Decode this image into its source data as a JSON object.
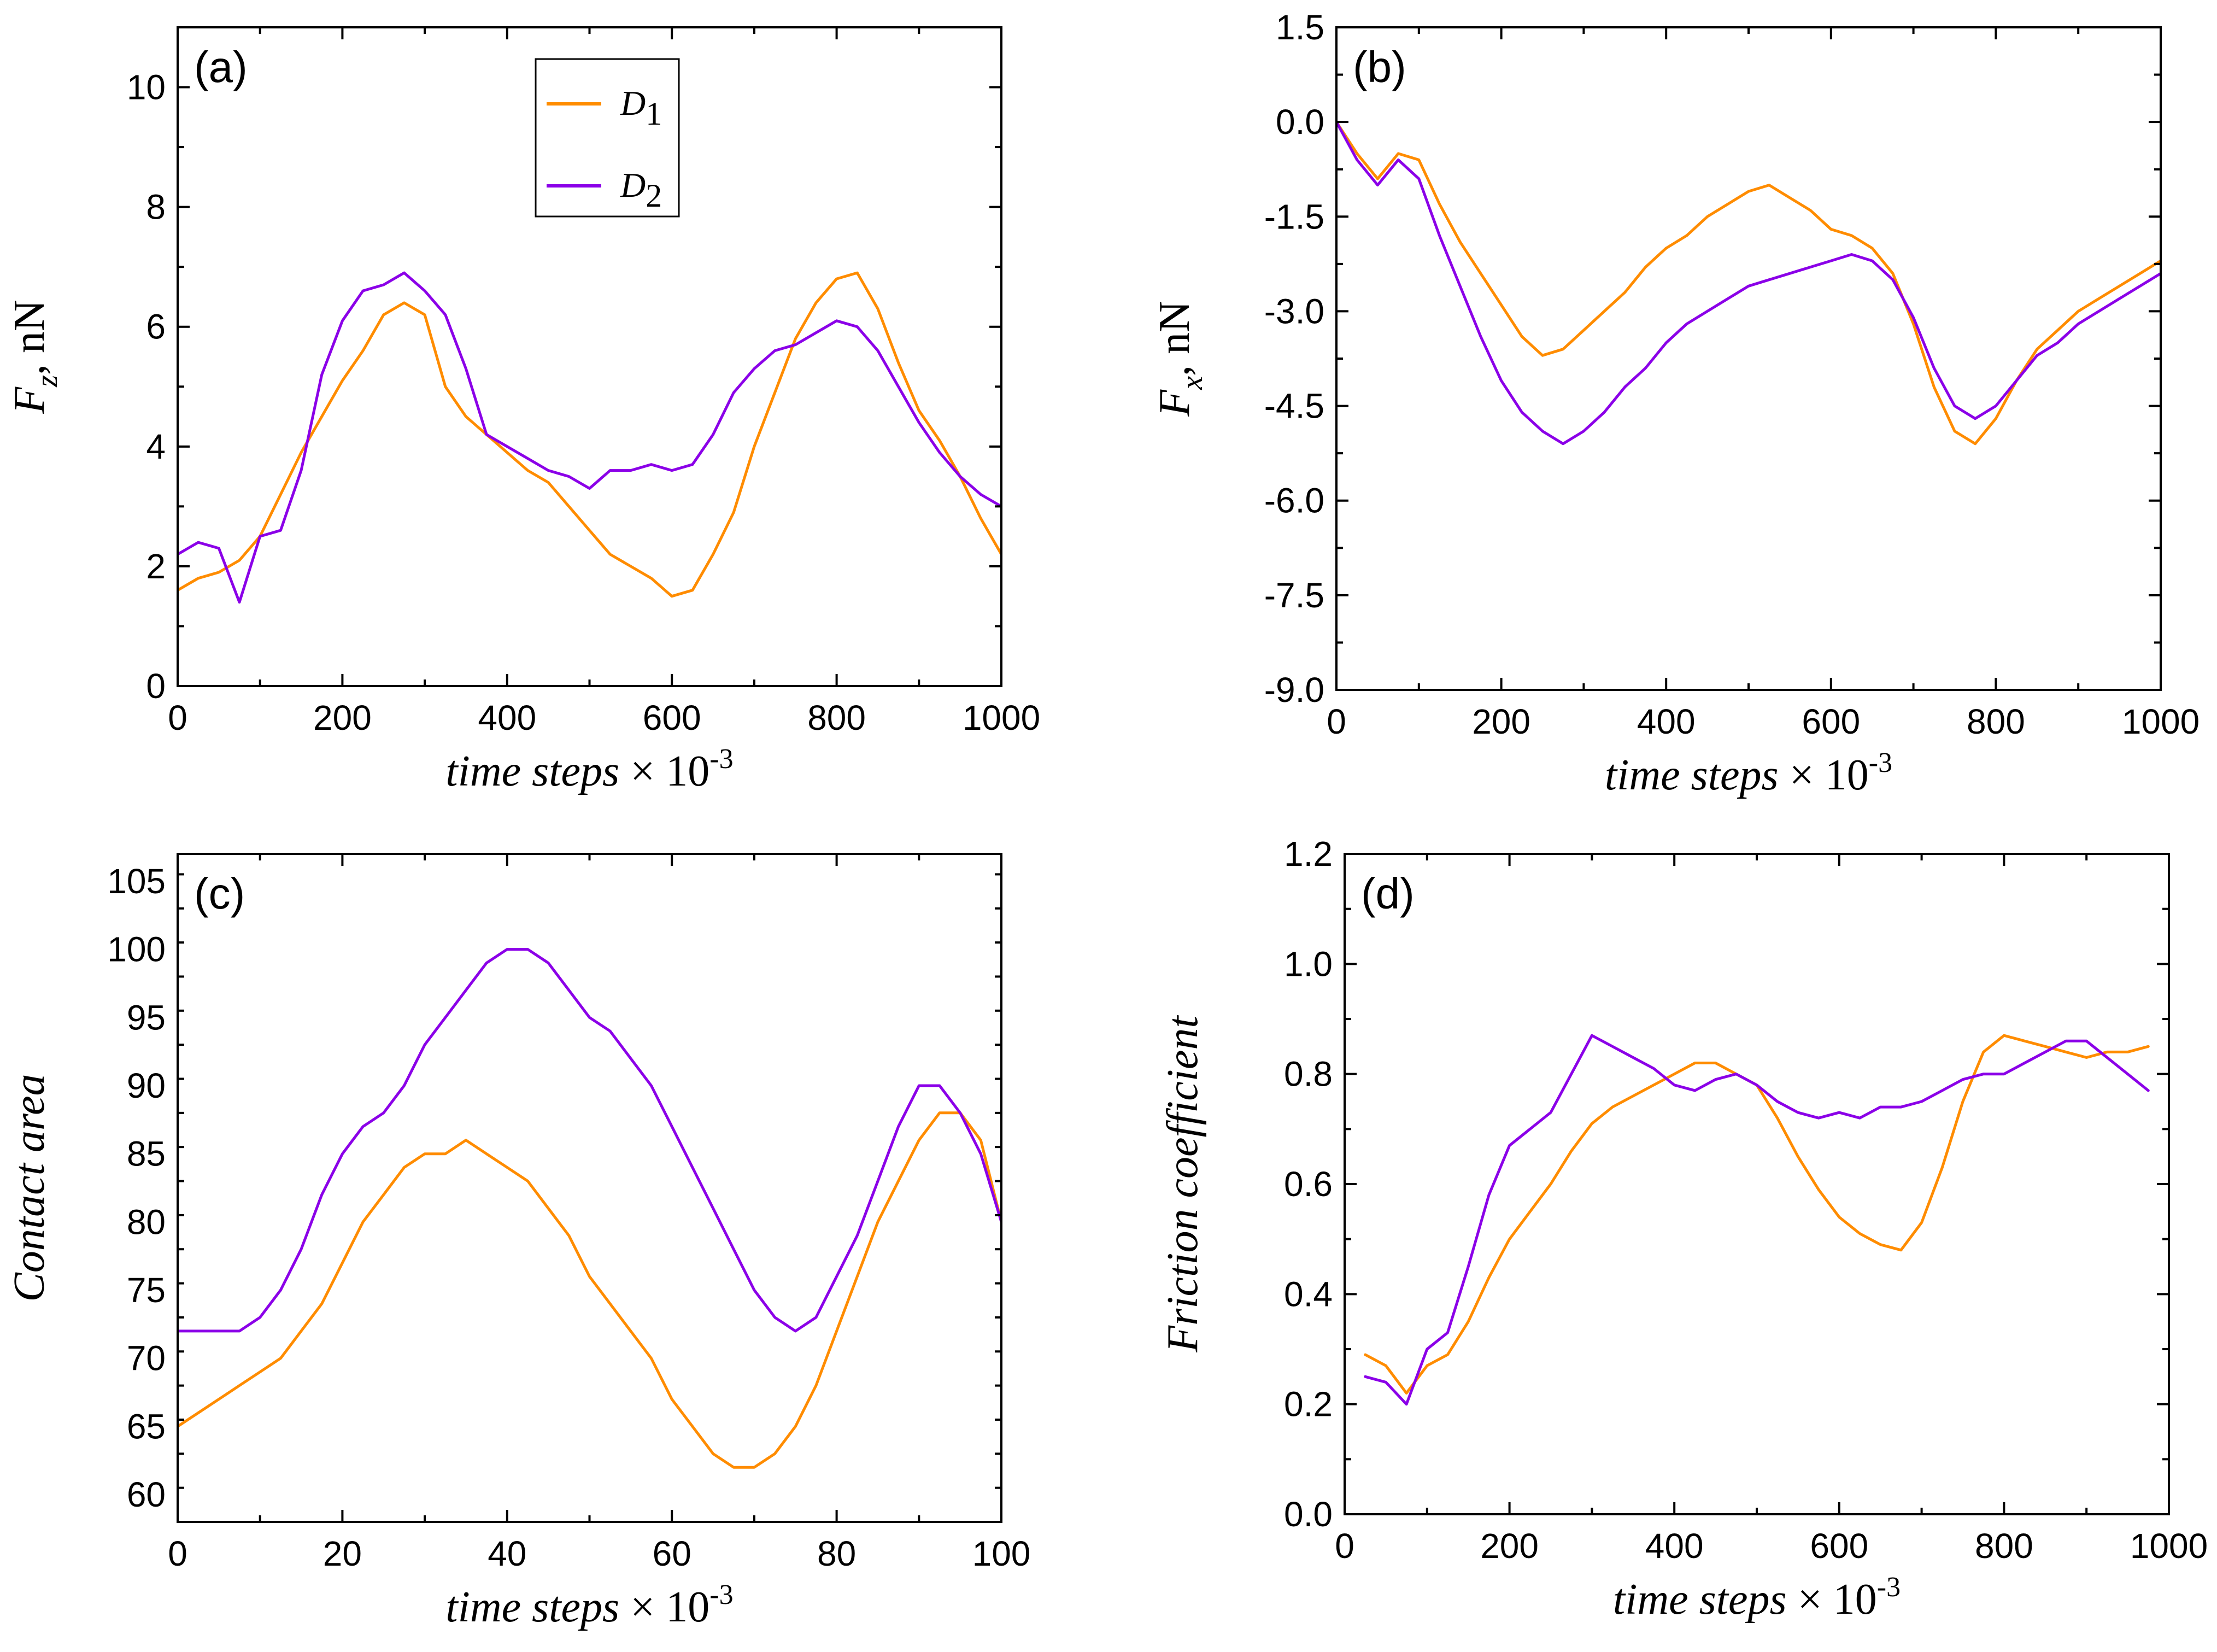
{
  "colors": {
    "D1": "#ff8c00",
    "D2": "#8b00e8",
    "axis": "#000000"
  },
  "legend": {
    "entries": [
      {
        "id": "D1",
        "base": "D",
        "sub": "1"
      },
      {
        "id": "D2",
        "base": "D",
        "sub": "2"
      }
    ]
  },
  "chart_data": [
    {
      "id": "a",
      "type": "line",
      "panel_label": "(a)",
      "title": "",
      "xlabel": {
        "main": "time steps",
        "times": "× 10",
        "exp": "-3"
      },
      "ylabel": {
        "main": "F",
        "sub": "z",
        "unit": ", nN"
      },
      "xlim": [
        0,
        1000
      ],
      "ylim": [
        0,
        11
      ],
      "xticks": [
        0,
        200,
        400,
        600,
        800,
        1000
      ],
      "xticklabels": [
        "0",
        "200",
        "400",
        "600",
        "800",
        "1000"
      ],
      "yticks": [
        0,
        2,
        4,
        6,
        8,
        10
      ],
      "yticklabels": [
        "0",
        "2",
        "4",
        "6",
        "8",
        "10"
      ],
      "legend": "top-center",
      "series": [
        {
          "name": "D1",
          "x_start": 0,
          "x_step": 25,
          "values": [
            1.6,
            1.8,
            1.9,
            2.1,
            2.5,
            3.2,
            3.9,
            4.5,
            5.1,
            5.6,
            6.2,
            6.4,
            6.2,
            5.0,
            4.5,
            4.2,
            3.9,
            3.6,
            3.4,
            3.0,
            2.6,
            2.2,
            2.0,
            1.8,
            1.5,
            1.6,
            2.2,
            2.9,
            4.0,
            4.9,
            5.8,
            6.4,
            6.8,
            6.9,
            6.3,
            5.4,
            4.6,
            4.1,
            3.5,
            2.8,
            2.2
          ]
        },
        {
          "name": "D2",
          "x_start": 0,
          "x_step": 25,
          "values": [
            2.2,
            2.4,
            2.3,
            1.4,
            2.5,
            2.6,
            3.6,
            5.2,
            6.1,
            6.6,
            6.7,
            6.9,
            6.6,
            6.2,
            5.3,
            4.2,
            4.0,
            3.8,
            3.6,
            3.5,
            3.3,
            3.6,
            3.6,
            3.7,
            3.6,
            3.7,
            4.2,
            4.9,
            5.3,
            5.6,
            5.7,
            5.9,
            6.1,
            6.0,
            5.6,
            5.0,
            4.4,
            3.9,
            3.5,
            3.2,
            3.0
          ]
        }
      ]
    },
    {
      "id": "b",
      "type": "line",
      "panel_label": "(b)",
      "title": "",
      "xlabel": {
        "main": "time steps",
        "times": "× 10",
        "exp": "-3"
      },
      "ylabel": {
        "main": "F",
        "sub": "x",
        "unit": ", nN"
      },
      "xlim": [
        0,
        1000
      ],
      "ylim": [
        -9,
        1.5
      ],
      "xticks": [
        0,
        200,
        400,
        600,
        800,
        1000
      ],
      "xticklabels": [
        "0",
        "200",
        "400",
        "600",
        "800",
        "1000"
      ],
      "yticks": [
        -9,
        -7.5,
        -6,
        -4.5,
        -3,
        -1.5,
        0,
        1.5
      ],
      "yticklabels": [
        "-9.0",
        "-7.5",
        "-6.0",
        "-4.5",
        "-3.0",
        "-1.5",
        "0.0",
        "1.5"
      ],
      "legend": "none",
      "series": [
        {
          "name": "D1",
          "x_start": 0,
          "x_step": 25,
          "values": [
            0.0,
            -0.5,
            -0.9,
            -0.5,
            -0.6,
            -1.3,
            -1.9,
            -2.4,
            -2.9,
            -3.4,
            -3.7,
            -3.6,
            -3.3,
            -3.0,
            -2.7,
            -2.3,
            -2.0,
            -1.8,
            -1.5,
            -1.3,
            -1.1,
            -1.0,
            -1.2,
            -1.4,
            -1.7,
            -1.8,
            -2.0,
            -2.4,
            -3.2,
            -4.2,
            -4.9,
            -5.1,
            -4.7,
            -4.1,
            -3.6,
            -3.3,
            -3.0,
            -2.8,
            -2.6,
            -2.4,
            -2.2
          ]
        },
        {
          "name": "D2",
          "x_start": 0,
          "x_step": 25,
          "values": [
            0.0,
            -0.6,
            -1.0,
            -0.6,
            -0.9,
            -1.8,
            -2.6,
            -3.4,
            -4.1,
            -4.6,
            -4.9,
            -5.1,
            -4.9,
            -4.6,
            -4.2,
            -3.9,
            -3.5,
            -3.2,
            -3.0,
            -2.8,
            -2.6,
            -2.5,
            -2.4,
            -2.3,
            -2.2,
            -2.1,
            -2.2,
            -2.5,
            -3.1,
            -3.9,
            -4.5,
            -4.7,
            -4.5,
            -4.1,
            -3.7,
            -3.5,
            -3.2,
            -3.0,
            -2.8,
            -2.6,
            -2.4
          ]
        }
      ]
    },
    {
      "id": "c",
      "type": "line",
      "panel_label": "(c)",
      "title": "",
      "xlabel": {
        "main": "time steps",
        "times": "× 10",
        "exp": "-3"
      },
      "ylabel": {
        "main": "Contact area",
        "sub": "",
        "unit": ""
      },
      "xlim": [
        0,
        100
      ],
      "ylim": [
        58,
        107
      ],
      "xticks": [
        0,
        20,
        40,
        60,
        80,
        100
      ],
      "xticklabels": [
        "0",
        "20",
        "40",
        "60",
        "80",
        "100"
      ],
      "yticks": [
        60,
        65,
        70,
        75,
        80,
        85,
        90,
        95,
        100,
        105
      ],
      "yticklabels": [
        "60",
        "65",
        "70",
        "75",
        "80",
        "85",
        "90",
        "95",
        "100",
        "105"
      ],
      "legend": "none",
      "series": [
        {
          "name": "D1",
          "x_start": 0,
          "x_step": 2.5,
          "values": [
            65,
            66,
            67,
            68,
            69,
            70,
            72,
            74,
            77,
            80,
            82,
            84,
            85,
            85,
            86,
            85,
            84,
            83,
            81,
            79,
            76,
            74,
            72,
            70,
            67,
            65,
            63,
            62,
            62,
            63,
            65,
            68,
            72,
            76,
            80,
            83,
            86,
            88,
            88,
            86,
            80
          ]
        },
        {
          "name": "D2",
          "x_start": 0,
          "x_step": 2.5,
          "values": [
            72,
            72,
            72,
            72,
            73,
            75,
            78,
            82,
            85,
            87,
            88,
            90,
            93,
            95,
            97,
            99,
            100,
            100,
            99,
            97,
            95,
            94,
            92,
            90,
            87,
            84,
            81,
            78,
            75,
            73,
            72,
            73,
            76,
            79,
            83,
            87,
            90,
            90,
            88,
            85,
            80
          ]
        }
      ]
    },
    {
      "id": "d",
      "type": "line",
      "panel_label": "(d)",
      "title": "",
      "xlabel": {
        "main": "time steps",
        "times": "× 10",
        "exp": "-3"
      },
      "ylabel": {
        "main": "Friction coefficient",
        "sub": "",
        "unit": ""
      },
      "xlim": [
        0,
        1000
      ],
      "ylim": [
        0,
        1.2
      ],
      "xticks": [
        0,
        200,
        400,
        600,
        800,
        1000
      ],
      "xticklabels": [
        "0",
        "200",
        "400",
        "600",
        "800",
        "1000"
      ],
      "yticks": [
        0,
        0.2,
        0.4,
        0.6,
        0.8,
        1.0,
        1.2
      ],
      "yticklabels": [
        "0.0",
        "0.2",
        "0.4",
        "0.6",
        "0.8",
        "1.0",
        "1.2"
      ],
      "legend": "none",
      "series": [
        {
          "name": "D1",
          "x_start": 25,
          "x_step": 25,
          "values": [
            0.29,
            0.27,
            0.22,
            0.27,
            0.29,
            0.35,
            0.43,
            0.5,
            0.55,
            0.6,
            0.66,
            0.71,
            0.74,
            0.76,
            0.78,
            0.8,
            0.82,
            0.82,
            0.8,
            0.78,
            0.72,
            0.65,
            0.59,
            0.54,
            0.51,
            0.49,
            0.48,
            0.53,
            0.63,
            0.75,
            0.84,
            0.87,
            0.86,
            0.85,
            0.84,
            0.83,
            0.84,
            0.84,
            0.85
          ]
        },
        {
          "name": "D2",
          "x_start": 25,
          "x_step": 25,
          "values": [
            0.25,
            0.24,
            0.2,
            0.3,
            0.33,
            0.45,
            0.58,
            0.67,
            0.7,
            0.73,
            0.8,
            0.87,
            0.85,
            0.83,
            0.81,
            0.78,
            0.77,
            0.79,
            0.8,
            0.78,
            0.75,
            0.73,
            0.72,
            0.73,
            0.72,
            0.74,
            0.74,
            0.75,
            0.77,
            0.79,
            0.8,
            0.8,
            0.82,
            0.84,
            0.86,
            0.86,
            0.83,
            0.8,
            0.77
          ]
        }
      ]
    }
  ]
}
